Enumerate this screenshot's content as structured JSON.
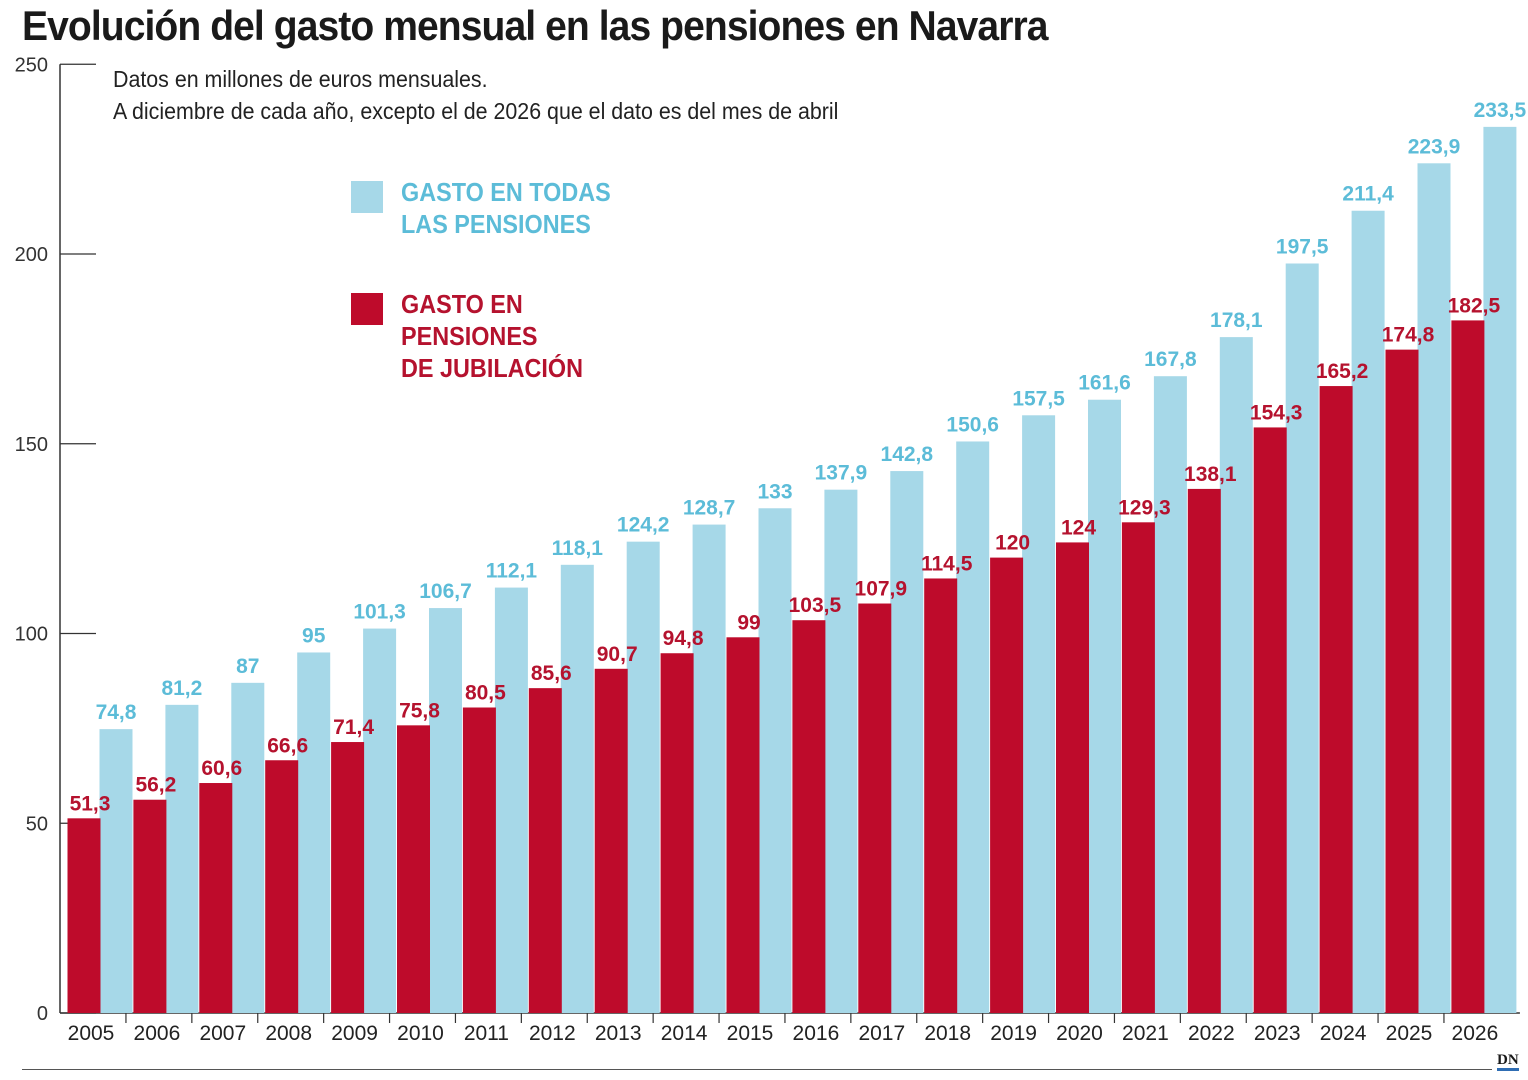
{
  "title": "Evolución del gasto mensual en las pensiones en Navarra",
  "subtitle_lines": [
    "Datos en millones de euros mensuales.",
    "A diciembre de cada año, excepto el de 2026 que el dato es del mes de abril"
  ],
  "legend": [
    {
      "label": "GASTO EN TODAS\nLAS PENSIONES",
      "color": "#a6d8e8"
    },
    {
      "label": "GASTO EN\nPENSIONES\nDE JUBILACIÓN",
      "color": "#be0b2b"
    }
  ],
  "logo_text": "DN",
  "colors": {
    "all_pensions": "#a6d8e8",
    "all_pensions_label": "#5cbcd8",
    "retirement": "#be0b2b",
    "retirement_label": "#b5122e",
    "axis": "#333333",
    "logo_accent": "#2f6db3"
  },
  "chart_data": {
    "type": "bar",
    "title": "Evolución del gasto mensual en las pensiones en Navarra",
    "xlabel": "",
    "ylabel": "",
    "ylim": [
      0,
      250
    ],
    "yticks": [
      0,
      50,
      100,
      150,
      200,
      250
    ],
    "grid": false,
    "legend_position": "top-left",
    "categories": [
      "2005",
      "2006",
      "2007",
      "2008",
      "2009",
      "2010",
      "2011",
      "2012",
      "2013",
      "2014",
      "2015",
      "2016",
      "2017",
      "2018",
      "2019",
      "2020",
      "2021",
      "2022",
      "2023",
      "2024",
      "2025",
      "2026"
    ],
    "series": [
      {
        "name": "GASTO EN TODAS LAS PENSIONES",
        "values": [
          74.8,
          81.2,
          87,
          95,
          101.3,
          106.7,
          112.1,
          118.1,
          124.2,
          128.7,
          133,
          137.9,
          142.8,
          150.6,
          157.5,
          161.6,
          167.8,
          178.1,
          197.5,
          211.4,
          223.9,
          233.5
        ],
        "labels": [
          "74,8",
          "81,2",
          "87",
          "95",
          "101,3",
          "106,7",
          "112,1",
          "118,1",
          "124,2",
          "128,7",
          "133",
          "137,9",
          "142,8",
          "150,6",
          "157,5",
          "161,6",
          "167,8",
          "178,1",
          "197,5",
          "211,4",
          "223,9",
          "233,5"
        ]
      },
      {
        "name": "GASTO EN PENSIONES DE JUBILACIÓN",
        "values": [
          51.3,
          56.2,
          60.6,
          66.6,
          71.4,
          75.8,
          80.5,
          85.6,
          90.7,
          94.8,
          99,
          103.5,
          107.9,
          114.5,
          120,
          124,
          129.3,
          138.1,
          154.3,
          165.2,
          174.8,
          182.5
        ],
        "labels": [
          "51,3",
          "56,2",
          "60,6",
          "66,6",
          "71,4",
          "75,8",
          "80,5",
          "85,6",
          "90,7",
          "94,8",
          "99",
          "103,5",
          "107,9",
          "114,5",
          "120",
          "124",
          "129,3",
          "138,1",
          "154,3",
          "165,2",
          "174,8",
          "182,5"
        ]
      }
    ]
  }
}
